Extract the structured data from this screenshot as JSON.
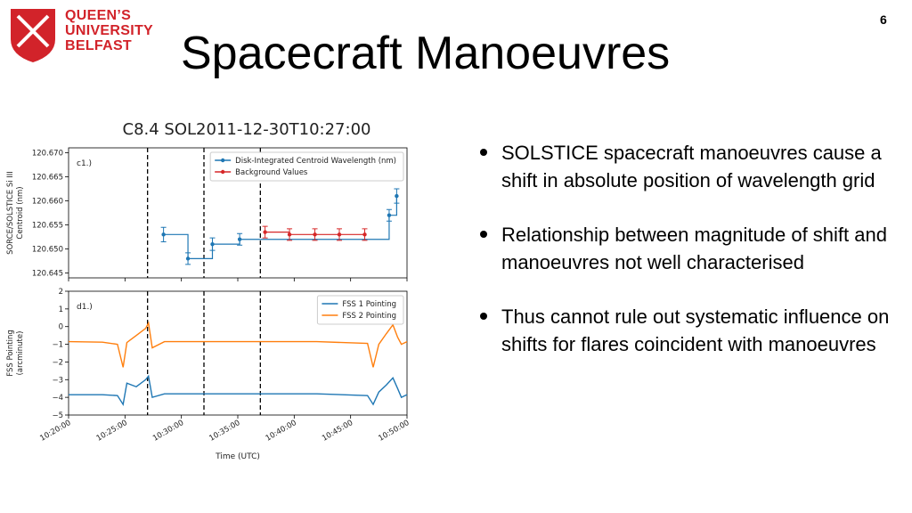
{
  "slide": {
    "logo": [
      "QUEEN’S",
      "UNIVERSITY",
      "BELFAST"
    ],
    "page_number": "6",
    "title": "Spacecraft Manoeuvres",
    "bullets": [
      "SOLSTICE spacecraft manoeuvres cause a shift in absolute position of wavelength grid",
      "Relationship between magnitude of shift and manoeuvres not well characterised",
      "Thus cannot rule out systematic influence on shifts for flares coincident with manoeuvres"
    ]
  },
  "chart_data": [
    {
      "type": "errorbar",
      "title": "C8.4 SOL2011-12-30T10:27:00",
      "annotation": "c1.)",
      "ylabel": [
        "SORCE/SOLSTICE Si III",
        "Centroid (nm)"
      ],
      "xlim": [
        "10:20:00",
        "10:50:00"
      ],
      "xticks": [
        "10:20:00",
        "10:25:00",
        "10:30:00",
        "10:35:00",
        "10:40:00",
        "10:45:00",
        "10:50:00"
      ],
      "show_xtick_labels": false,
      "ylim": [
        120.644,
        120.671
      ],
      "yticks": [
        120.645,
        {
          "value": 120.65,
          "label": "120.650"
        },
        120.655,
        {
          "value": 120.66,
          "label": "120.660"
        },
        120.665,
        {
          "value": 120.67,
          "label": "120.670"
        }
      ],
      "vlines": [
        "10:27:00",
        "10:32:00",
        "10:37:00"
      ],
      "legend": "upper right",
      "series": [
        {
          "name": "Disk-Integrated Centroid Wavelength (nm)",
          "color": "#1f77b4",
          "x": [
            "10:28:25",
            "10:30:35",
            "10:32:45",
            "10:35:10",
            "10:48:25",
            "10:49:05"
          ],
          "values": [
            120.653,
            120.648,
            120.651,
            120.652,
            120.657,
            120.661
          ],
          "errors": [
            0.0015,
            0.0012,
            0.0013,
            0.0012,
            0.0012,
            0.0015
          ]
        },
        {
          "name": "Background Values",
          "color": "#d62728",
          "x": [
            "10:37:25",
            "10:39:35",
            "10:41:50",
            "10:44:00",
            "10:46:15"
          ],
          "values": [
            120.6535,
            120.653,
            120.653,
            120.653,
            120.653
          ],
          "errors": [
            0.0012,
            0.0012,
            0.0012,
            0.0012,
            0.0012
          ]
        }
      ]
    },
    {
      "type": "line",
      "annotation": "d1.)",
      "xlabel": "Time (UTC)",
      "ylabel": [
        "FSS Pointing",
        "(arcminute)"
      ],
      "xlim": [
        "10:20:00",
        "10:50:00"
      ],
      "xticks": [
        "10:20:00",
        "10:25:00",
        "10:30:00",
        "10:35:00",
        "10:40:00",
        "10:45:00",
        "10:50:00"
      ],
      "show_xtick_labels": true,
      "ylim": [
        -5,
        2
      ],
      "yticks": [
        {
          "value": -5,
          "label": "−5"
        },
        {
          "value": -4,
          "label": "−4"
        },
        {
          "value": -3,
          "label": "−3"
        },
        {
          "value": -2,
          "label": "−2"
        },
        {
          "value": -1,
          "label": "−1"
        },
        0,
        1,
        2
      ],
      "vlines": [
        "10:27:00",
        "10:32:00",
        "10:37:00"
      ],
      "legend": "upper right",
      "x": [
        "10:20:00",
        "10:23:00",
        "10:24:20",
        "10:24:50",
        "10:25:10",
        "10:26:00",
        "10:26:50",
        "10:27:05",
        "10:27:25",
        "10:28:30",
        "10:35:00",
        "10:42:00",
        "10:46:30",
        "10:47:00",
        "10:47:30",
        "10:48:10",
        "10:48:45",
        "10:49:10",
        "10:49:30",
        "10:50:00"
      ],
      "series": [
        {
          "name": "FSS 1 Pointing",
          "color": "#1f77b4",
          "values": [
            -3.85,
            -3.85,
            -3.9,
            -4.4,
            -3.2,
            -3.4,
            -3.0,
            -2.8,
            -4.0,
            -3.8,
            -3.8,
            -3.8,
            -3.9,
            -4.4,
            -3.7,
            -3.3,
            -2.9,
            -3.5,
            -4.0,
            -3.85
          ]
        },
        {
          "name": "FSS 2 Pointing",
          "color": "#ff7f0e",
          "values": [
            -0.85,
            -0.88,
            -1.0,
            -2.3,
            -0.9,
            -0.5,
            -0.1,
            0.2,
            -1.2,
            -0.85,
            -0.85,
            -0.85,
            -0.95,
            -2.3,
            -1.0,
            -0.4,
            0.1,
            -0.6,
            -1.0,
            -0.85
          ]
        }
      ]
    }
  ]
}
